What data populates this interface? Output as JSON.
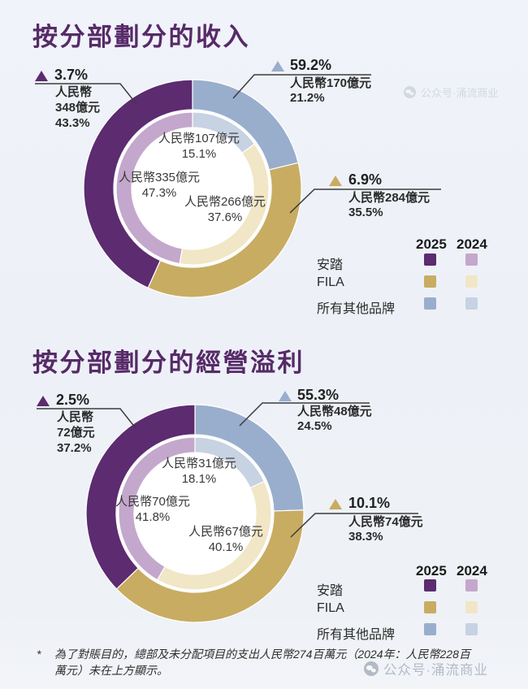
{
  "page": {
    "background": "#edf1f7",
    "accent_title_color": "#572a68"
  },
  "watermark": {
    "text": "公众号·涌流商业"
  },
  "legend": {
    "years": [
      "2025",
      "2024"
    ],
    "brands": [
      "安踏",
      "FILA",
      "所有其他品牌"
    ]
  },
  "colors": {
    "anta_2025": "#5c2b70",
    "anta_2024": "#c4a7cc",
    "fila_2025": "#c8ac62",
    "fila_2024": "#f1e6c6",
    "other_2025": "#99aecc",
    "other_2024": "#c7d2e2",
    "leader_line": "#3c3c3c"
  },
  "chart_data": [
    {
      "type": "donut",
      "title": "按分部劃分的收入",
      "currency": "人民幣",
      "rings": {
        "outer": "2025",
        "inner": "2024"
      },
      "clockwise_from_top": [
        "所有其他品牌",
        "FILA",
        "安踏"
      ],
      "outer_pct": [
        21.2,
        35.5,
        43.3
      ],
      "inner_pct": [
        15.1,
        37.6,
        47.3
      ],
      "values_yi": {
        "y2025": {
          "anta": 348,
          "fila": 284,
          "other": 170
        },
        "y2024": {
          "anta": 335,
          "fila": 266,
          "other": 107
        }
      },
      "callouts": {
        "anta": {
          "yoy": "3.7%",
          "lines": [
            "人民幣",
            "348億元",
            "43.3%"
          ]
        },
        "other": {
          "yoy": "59.2%",
          "lines": [
            "人民幣170億元",
            "21.2%"
          ]
        },
        "fila": {
          "yoy": "6.9%",
          "lines": [
            "人民幣284億元",
            "35.5%"
          ]
        }
      },
      "inner_labels": {
        "other": [
          "人民幣107億元",
          "15.1%"
        ],
        "anta": [
          "人民幣335億元",
          "47.3%"
        ],
        "fila": [
          "人民幣266億元",
          "37.6%"
        ]
      }
    },
    {
      "type": "donut",
      "title": "按分部劃分的經營溢利",
      "currency": "人民幣",
      "rings": {
        "outer": "2025",
        "inner": "2024"
      },
      "clockwise_from_top": [
        "所有其他品牌",
        "FILA",
        "安踏"
      ],
      "outer_pct": [
        24.5,
        38.3,
        37.2
      ],
      "inner_pct": [
        18.1,
        40.1,
        41.8
      ],
      "values_yi": {
        "y2025": {
          "anta": 72,
          "fila": 74,
          "other": 48
        },
        "y2024": {
          "anta": 70,
          "fila": 67,
          "other": 31
        }
      },
      "callouts": {
        "anta": {
          "yoy": "2.5%",
          "lines": [
            "人民幣",
            "72億元",
            "37.2%"
          ]
        },
        "other": {
          "yoy": "55.3%",
          "lines": [
            "人民幣48億元",
            "24.5%"
          ]
        },
        "fila": {
          "yoy": "10.1%",
          "lines": [
            "人民幣74億元",
            "38.3%"
          ]
        }
      },
      "inner_labels": {
        "other": [
          "人民幣31億元",
          "18.1%"
        ],
        "anta": [
          "人民幣70億元",
          "41.8%"
        ],
        "fila": [
          "人民幣67億元",
          "40.1%"
        ]
      }
    }
  ],
  "footnote": {
    "marker": "*",
    "text": "為了對賬目的，總部及未分配項目的支出人民幣274百萬元（2024年：人民幣228百萬元）未在上方顯示。"
  }
}
